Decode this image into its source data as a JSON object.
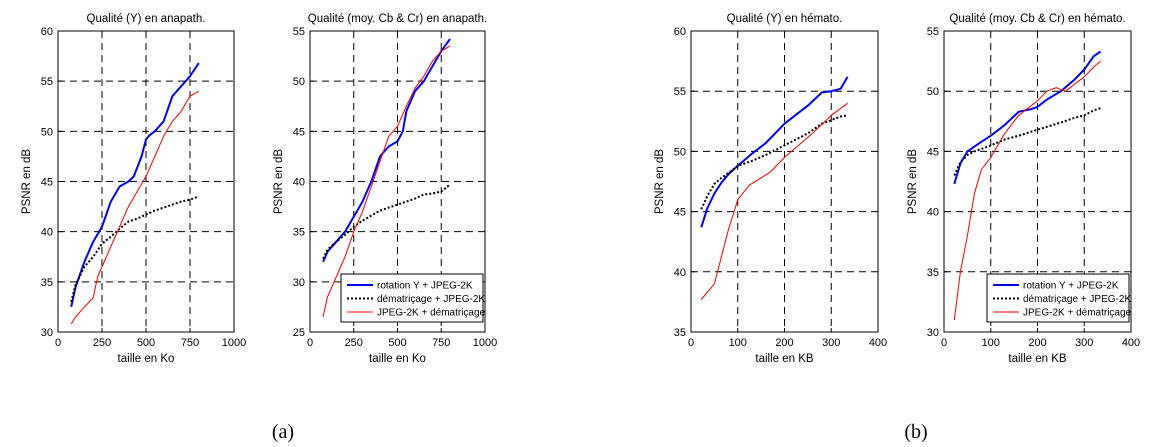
{
  "captions": [
    "(a)",
    "(b)"
  ],
  "colors": {
    "rotation": "#0000ee",
    "dematricage": "#000000",
    "jpeg2k": "#ee0000"
  },
  "series_names": [
    "rotation Y + JPEG-2K",
    "dématriçage + JPEG-2K",
    "JPEG-2K + dématriçage"
  ],
  "chart_data": [
    {
      "type": "line",
      "title": "Qualité (Y) en anapath.",
      "xlabel": "taille en Ko",
      "ylabel": "PSNR en dB",
      "xlim": [
        0,
        1000
      ],
      "ylim": [
        30,
        60
      ],
      "xticks": [
        0,
        250,
        500,
        750,
        1000
      ],
      "yticks": [
        30,
        35,
        40,
        45,
        50,
        55,
        60
      ],
      "grid": true,
      "legend": null,
      "series": [
        {
          "x": [
            75,
            100,
            150,
            200,
            250,
            300,
            350,
            400,
            430,
            475,
            500,
            520,
            550,
            600,
            650,
            700,
            750,
            800
          ],
          "y": [
            32.5,
            34.5,
            37,
            39,
            40.5,
            43,
            44.5,
            45,
            45.5,
            47.5,
            49.2,
            49.6,
            50,
            51,
            53.5,
            54.5,
            55.5,
            56.8
          ]
        },
        {
          "x": [
            75,
            100,
            150,
            200,
            250,
            300,
            350,
            400,
            450,
            500,
            550,
            600,
            650,
            700,
            750,
            800
          ],
          "y": [
            33,
            34.7,
            36.5,
            37.5,
            38.8,
            39.5,
            40.3,
            41,
            41.3,
            41.7,
            42.1,
            42.4,
            42.7,
            43,
            43.2,
            43.5
          ]
        },
        {
          "x": [
            75,
            100,
            150,
            200,
            225,
            250,
            300,
            350,
            400,
            450,
            500,
            550,
            600,
            650,
            700,
            750,
            800
          ],
          "y": [
            30.8,
            31.5,
            32.5,
            33.4,
            35.5,
            36.5,
            38.5,
            40.5,
            42.5,
            44,
            45.5,
            47.5,
            49.5,
            51,
            52,
            53.5,
            54
          ]
        }
      ]
    },
    {
      "type": "line",
      "title": "Qualité (moy. Cb & Cr) en anapath.",
      "xlabel": "taille en Ko",
      "ylabel": "PSNR en dB",
      "xlim": [
        0,
        1000
      ],
      "ylim": [
        25,
        55
      ],
      "xticks": [
        0,
        250,
        500,
        750,
        1000
      ],
      "yticks": [
        25,
        30,
        35,
        40,
        45,
        50,
        55
      ],
      "grid": true,
      "legend": "lower-right",
      "series": [
        {
          "name": "rotation Y + JPEG-2K",
          "x": [
            75,
            100,
            150,
            200,
            250,
            300,
            350,
            400,
            450,
            500,
            530,
            550,
            600,
            650,
            700,
            750,
            800
          ],
          "y": [
            32,
            33,
            34,
            35,
            36.5,
            38,
            40,
            42.5,
            43.5,
            44,
            45,
            47,
            49,
            50,
            51.5,
            53,
            54.2
          ]
        },
        {
          "name": "dématriçage + JPEG-2K",
          "x": [
            75,
            100,
            150,
            200,
            250,
            300,
            350,
            400,
            450,
            500,
            550,
            600,
            650,
            700,
            750,
            800
          ],
          "y": [
            32.3,
            33.2,
            34,
            34.7,
            35.5,
            36.1,
            36.6,
            37.1,
            37.4,
            37.7,
            38,
            38.3,
            38.7,
            38.8,
            39,
            39.7
          ]
        },
        {
          "name": "JPEG-2K + dématriçage",
          "x": [
            75,
            100,
            150,
            200,
            250,
            300,
            350,
            400,
            450,
            500,
            550,
            600,
            650,
            700,
            750,
            800
          ],
          "y": [
            26.5,
            28.5,
            30.5,
            32.5,
            35,
            37,
            39.5,
            42,
            44.5,
            45.5,
            47.5,
            49.3,
            50.5,
            52,
            53,
            53.5
          ]
        }
      ]
    },
    {
      "type": "line",
      "title": "Qualité (Y) en hémato.",
      "xlabel": "taille en KB",
      "ylabel": "PSNR en dB",
      "xlim": [
        0,
        400
      ],
      "ylim": [
        35,
        60
      ],
      "xticks": [
        0,
        100,
        200,
        300,
        400
      ],
      "yticks": [
        35,
        40,
        45,
        50,
        55,
        60
      ],
      "grid": true,
      "legend": null,
      "series": [
        {
          "x": [
            22,
            35,
            50,
            65,
            80,
            100,
            130,
            160,
            200,
            250,
            280,
            300,
            320,
            335
          ],
          "y": [
            43.7,
            45.3,
            46.5,
            47.4,
            48.1,
            48.8,
            49.8,
            50.7,
            52.3,
            53.8,
            54.9,
            55,
            55.2,
            56.2
          ]
        },
        {
          "x": [
            22,
            35,
            50,
            65,
            80,
            100,
            130,
            160,
            200,
            250,
            280,
            300,
            320,
            335
          ],
          "y": [
            45.2,
            46.3,
            47.3,
            47.8,
            48.2,
            48.8,
            49.2,
            49.7,
            50.5,
            51.5,
            52.3,
            52.6,
            52.9,
            53
          ]
        },
        {
          "x": [
            22,
            50,
            80,
            100,
            125,
            150,
            170,
            200,
            230,
            260,
            300,
            335
          ],
          "y": [
            37.7,
            39,
            43.5,
            46,
            47.2,
            47.8,
            48.3,
            49.5,
            50.5,
            51.5,
            53,
            54
          ]
        }
      ]
    },
    {
      "type": "line",
      "title": "Qualité (moy. Cb & Cr) en hémato.",
      "xlabel": "taille en KB",
      "ylabel": "PSNR en dB",
      "xlim": [
        0,
        400
      ],
      "ylim": [
        30,
        55
      ],
      "xticks": [
        0,
        100,
        200,
        300,
        400
      ],
      "yticks": [
        30,
        35,
        40,
        45,
        50,
        55
      ],
      "grid": true,
      "legend": "lower-right",
      "series": [
        {
          "name": "rotation Y + JPEG-2K",
          "x": [
            22,
            35,
            50,
            65,
            80,
            100,
            130,
            160,
            185,
            200,
            220,
            250,
            280,
            300,
            320,
            335
          ],
          "y": [
            42.3,
            44,
            45,
            45.4,
            45.8,
            46.3,
            47.2,
            48.3,
            48.5,
            48.7,
            49.3,
            50,
            51,
            51.8,
            52.9,
            53.3
          ]
        },
        {
          "name": "dématriçage + JPEG-2K",
          "x": [
            22,
            35,
            50,
            65,
            80,
            100,
            130,
            160,
            200,
            250,
            280,
            300,
            320,
            335
          ],
          "y": [
            43,
            44.1,
            44.7,
            45,
            45.2,
            45.5,
            46,
            46.3,
            46.8,
            47.4,
            47.8,
            48,
            48.4,
            48.6
          ]
        },
        {
          "name": "JPEG-2K + dématriçage",
          "x": [
            22,
            35,
            50,
            65,
            80,
            100,
            130,
            160,
            200,
            220,
            240,
            260,
            280,
            300,
            320,
            335
          ],
          "y": [
            31,
            35,
            38,
            41.5,
            43.5,
            44.5,
            46.5,
            48,
            49.2,
            50,
            50.3,
            50,
            50.6,
            51.2,
            52,
            52.5
          ]
        }
      ]
    }
  ]
}
